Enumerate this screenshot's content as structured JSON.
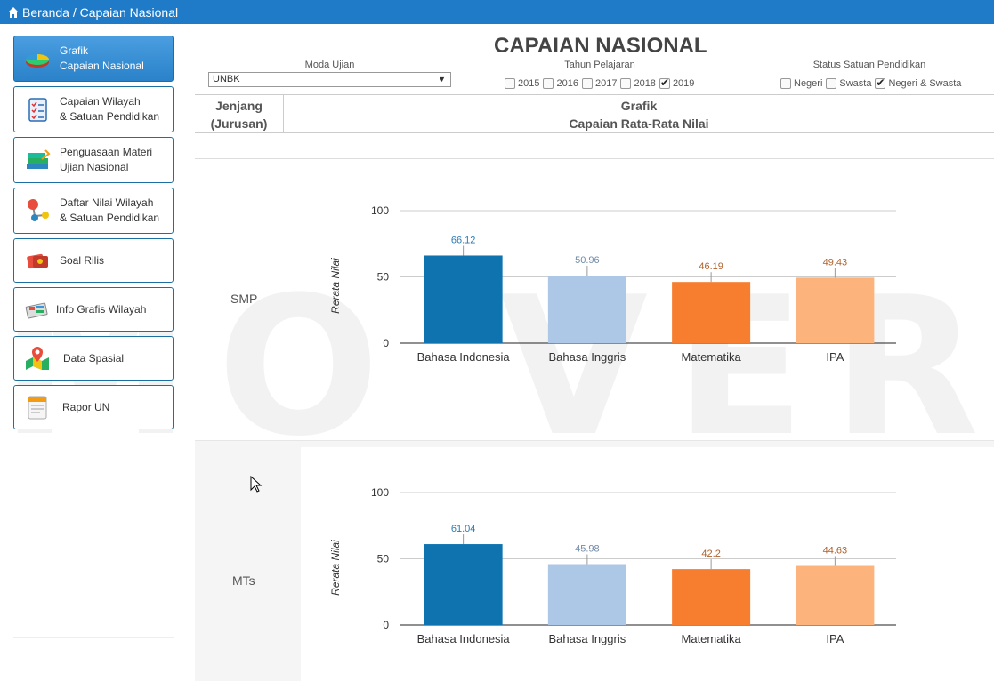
{
  "breadcrumb": "Beranda / Capaian Nasional",
  "sidebar": {
    "items": [
      {
        "label": "Grafik\nCapaian Nasional",
        "icon": "pie-chart-icon"
      },
      {
        "label": "Capaian Wilayah\n& Satuan Pendidikan",
        "icon": "checklist-icon"
      },
      {
        "label": "Penguasaan Materi\nUjian Nasional",
        "icon": "books-icon"
      },
      {
        "label": "Daftar Nilai Wilayah\n& Satuan Pendidikan",
        "icon": "molecule-icon"
      },
      {
        "label": "Soal Rilis",
        "icon": "ticket-icon"
      },
      {
        "label": "Info Grafis Wilayah",
        "icon": "infographic-icon"
      },
      {
        "label": "Data Spasial",
        "icon": "map-pin-icon"
      },
      {
        "label": "Rapor UN",
        "icon": "report-icon"
      }
    ]
  },
  "page_title": "CAPAIAN NASIONAL",
  "filters": {
    "moda_label": "Moda Ujian",
    "moda_value": "UNBK",
    "tahun_label": "Tahun Pelajaran",
    "years": [
      {
        "label": "2015",
        "checked": false
      },
      {
        "label": "2016",
        "checked": false
      },
      {
        "label": "2017",
        "checked": false
      },
      {
        "label": "2018",
        "checked": false
      },
      {
        "label": "2019",
        "checked": true
      }
    ],
    "status_label": "Status Satuan Pendidikan",
    "status": [
      {
        "label": "Negeri",
        "checked": false
      },
      {
        "label": "Swasta",
        "checked": false
      },
      {
        "label": "Negeri & Swasta",
        "checked": true
      }
    ]
  },
  "table": {
    "col_jenjang": "Jenjang\n(Jurusan)",
    "col_grafik": "Grafik\nCapaian Rata-Rata Nilai"
  },
  "watermark": "MO VERSI",
  "colors": {
    "topbar": "#1f7bc8",
    "bar_bahasa_indonesia": "#0f73b0",
    "bar_bahasa_inggris": "#adc7e6",
    "bar_matematika": "#f77d2f",
    "bar_ipa": "#fcb47c"
  },
  "chart_data": [
    {
      "type": "bar",
      "level": "SMP",
      "categories": [
        "Bahasa Indonesia",
        "Bahasa Inggris",
        "Matematika",
        "IPA"
      ],
      "values": [
        66.12,
        50.96,
        46.19,
        49.43
      ],
      "value_labels": [
        "66.12",
        "50.96",
        "46.19",
        "49.43"
      ],
      "ylabel": "Rerata Nilai",
      "yticks": [
        0,
        50,
        100
      ],
      "ylim": [
        0,
        100
      ]
    },
    {
      "type": "bar",
      "level": "MTs",
      "categories": [
        "Bahasa Indonesia",
        "Bahasa Inggris",
        "Matematika",
        "IPA"
      ],
      "values": [
        61.04,
        45.98,
        42.2,
        44.63
      ],
      "value_labels": [
        "61.04",
        "45.98",
        "42.2",
        "44.63"
      ],
      "ylabel": "Rerata Nilai",
      "yticks": [
        0,
        50,
        100
      ],
      "ylim": [
        0,
        100
      ]
    }
  ]
}
